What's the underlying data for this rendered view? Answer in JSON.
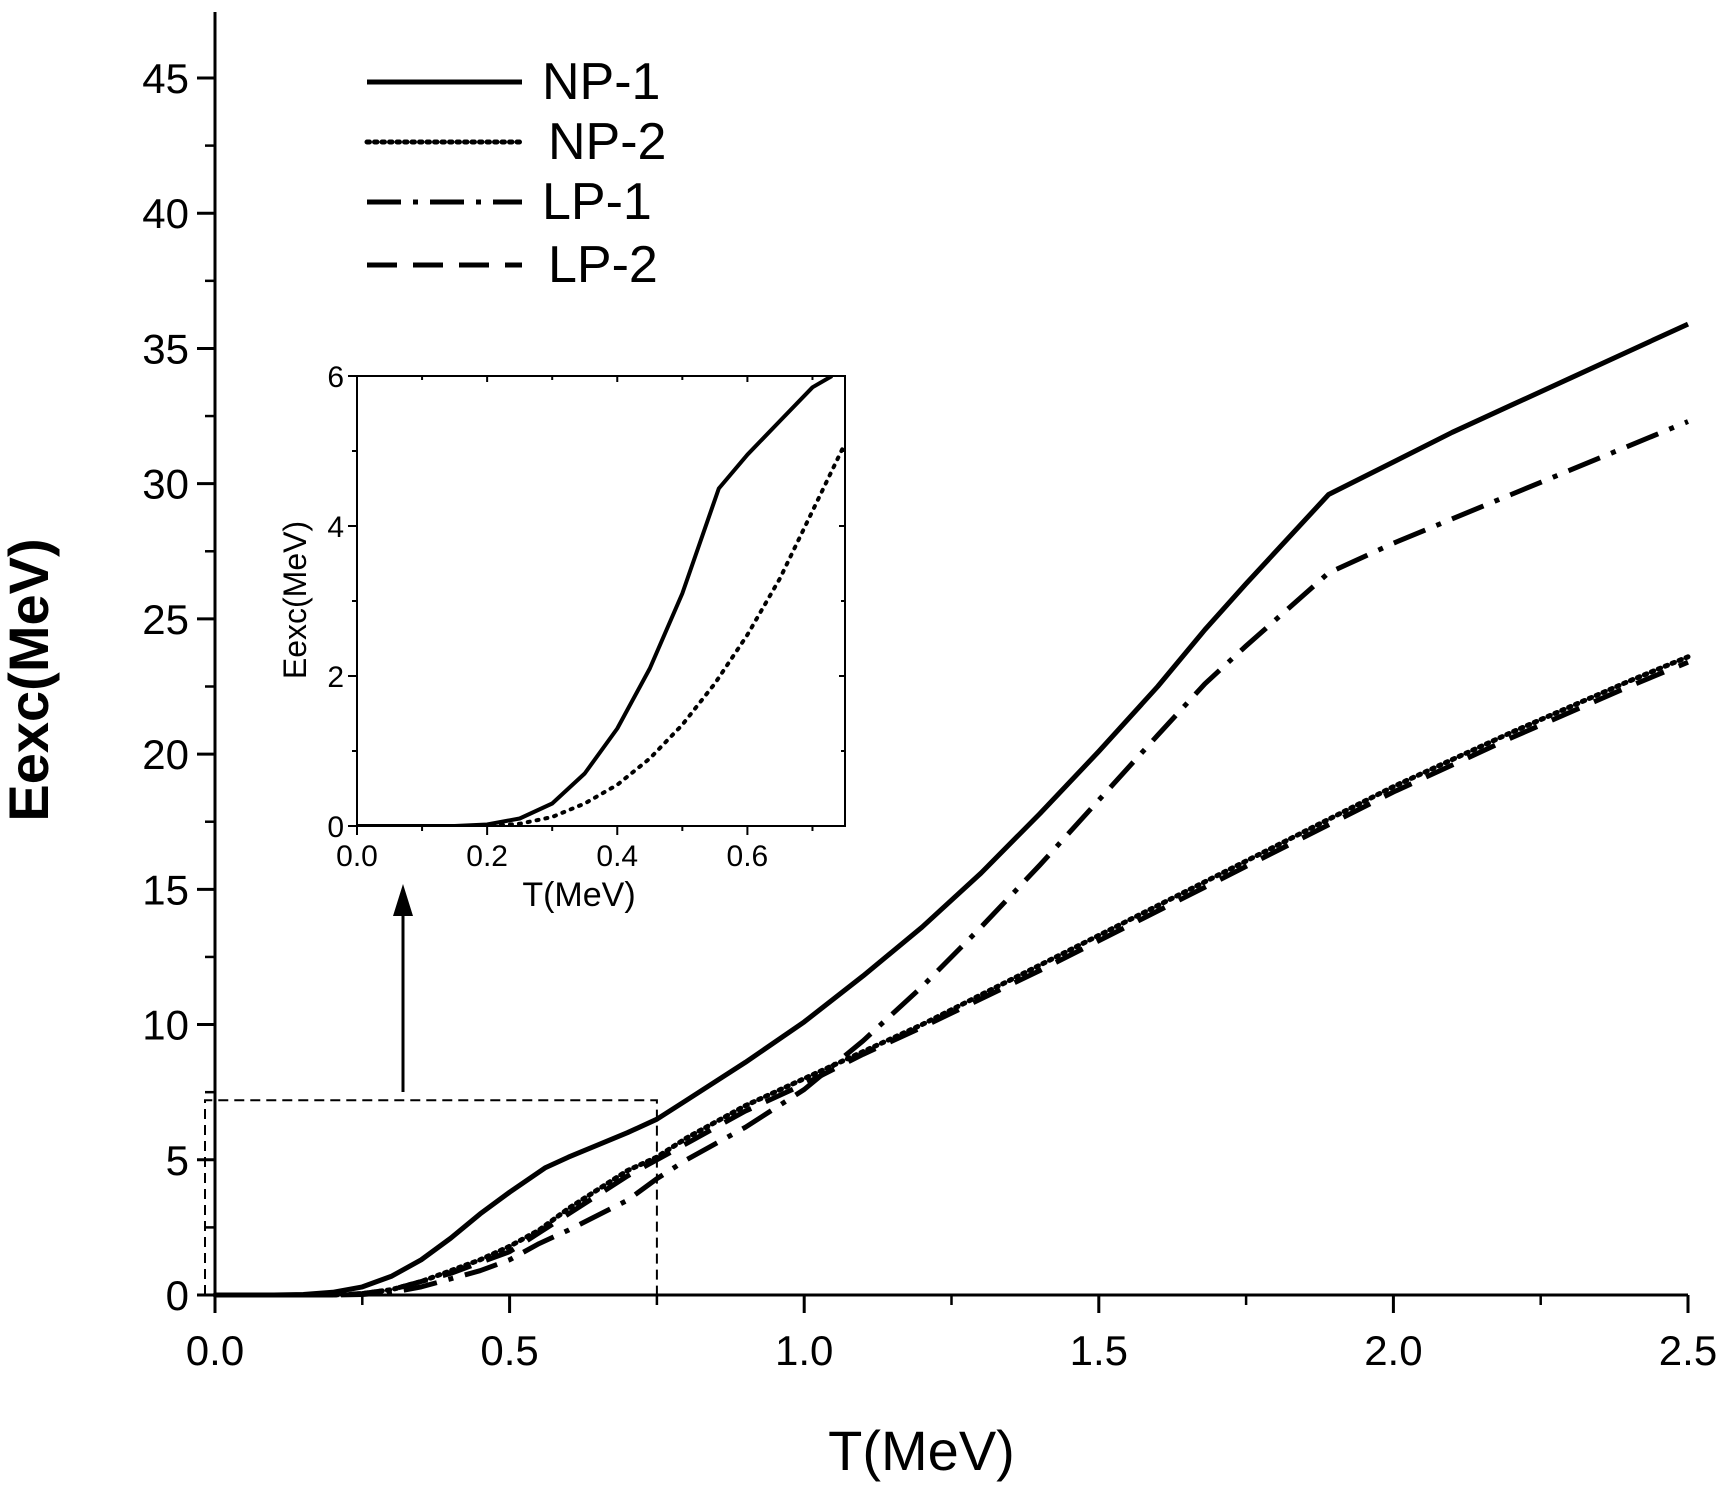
{
  "chart_data": [
    {
      "type": "line",
      "title": "",
      "xlabel": "T(MeV)",
      "ylabel": "Eexc(MeV)",
      "xlim": [
        0,
        2.5
      ],
      "ylim": [
        0,
        45
      ],
      "x_ticks": [
        0.0,
        0.5,
        1.0,
        1.5,
        2.0,
        2.5
      ],
      "x_tick_labels": [
        "0.0",
        "0.5",
        "1.0",
        "1.5",
        "2.0",
        "2.5"
      ],
      "y_ticks": [
        0,
        5,
        10,
        15,
        20,
        25,
        30,
        35,
        40,
        45
      ],
      "y_tick_labels": [
        "0",
        "5",
        "10",
        "15",
        "20",
        "25",
        "30",
        "35",
        "40",
        "45"
      ],
      "grid": false,
      "legend_position": "top-left",
      "series": [
        {
          "name": "NP-1",
          "style": "solid",
          "x": [
            0.0,
            0.1,
            0.15,
            0.2,
            0.25,
            0.3,
            0.35,
            0.4,
            0.45,
            0.5,
            0.56,
            0.6,
            0.7,
            0.75,
            0.8,
            0.9,
            1.0,
            1.1,
            1.2,
            1.3,
            1.4,
            1.5,
            1.6,
            1.68,
            1.75,
            1.89,
            2.0,
            2.1,
            2.2,
            2.3,
            2.4,
            2.5
          ],
          "y": [
            0.0,
            0.0,
            0.02,
            0.1,
            0.3,
            0.7,
            1.3,
            2.1,
            3.0,
            3.8,
            4.7,
            5.1,
            6.0,
            6.5,
            7.2,
            8.6,
            10.1,
            11.8,
            13.6,
            15.6,
            17.8,
            20.1,
            22.5,
            24.6,
            26.3,
            29.6,
            30.8,
            31.9,
            32.9,
            33.9,
            34.9,
            35.9
          ]
        },
        {
          "name": "NP-2",
          "style": "dotted",
          "x": [
            0.0,
            0.2,
            0.25,
            0.3,
            0.35,
            0.4,
            0.45,
            0.5,
            0.55,
            0.6,
            0.65,
            0.7,
            0.75,
            0.8,
            0.9,
            1.0,
            1.1,
            1.2,
            1.4,
            1.6,
            1.8,
            2.0,
            2.2,
            2.4,
            2.5
          ],
          "y": [
            0.0,
            0.0,
            0.05,
            0.2,
            0.5,
            0.9,
            1.3,
            1.8,
            2.4,
            3.2,
            3.9,
            4.6,
            5.1,
            5.8,
            7.0,
            8.0,
            9.0,
            10.0,
            12.2,
            14.4,
            16.6,
            18.8,
            20.8,
            22.7,
            23.6
          ]
        },
        {
          "name": "LP-1",
          "style": "dash-dot",
          "x": [
            0.0,
            0.2,
            0.25,
            0.3,
            0.35,
            0.4,
            0.45,
            0.5,
            0.55,
            0.6,
            0.7,
            0.75,
            0.8,
            0.9,
            1.0,
            1.1,
            1.2,
            1.3,
            1.4,
            1.5,
            1.6,
            1.68,
            1.75,
            1.89,
            2.0,
            2.1,
            2.2,
            2.3,
            2.4,
            2.5
          ],
          "y": [
            0.0,
            0.0,
            0.02,
            0.1,
            0.3,
            0.6,
            0.9,
            1.3,
            1.9,
            2.4,
            3.5,
            4.3,
            5.0,
            6.2,
            7.6,
            9.4,
            11.4,
            13.6,
            15.9,
            18.3,
            20.7,
            22.6,
            24.0,
            26.7,
            27.8,
            28.7,
            29.6,
            30.5,
            31.4,
            32.3
          ]
        },
        {
          "name": "LP-2",
          "style": "dashed",
          "x": [
            0.0,
            0.2,
            0.25,
            0.3,
            0.35,
            0.4,
            0.45,
            0.5,
            0.55,
            0.6,
            0.65,
            0.7,
            0.75,
            0.8,
            0.9,
            1.0,
            1.1,
            1.2,
            1.4,
            1.6,
            1.8,
            2.0,
            2.2,
            2.4,
            2.5
          ],
          "y": [
            0.0,
            0.0,
            0.05,
            0.2,
            0.5,
            0.8,
            1.2,
            1.6,
            2.3,
            3.0,
            3.7,
            4.4,
            5.0,
            5.6,
            6.8,
            7.8,
            8.9,
            9.9,
            12.0,
            14.2,
            16.4,
            18.6,
            20.6,
            22.5,
            23.4
          ]
        }
      ],
      "zoom_region": {
        "x": [
          0,
          0.75
        ],
        "y": [
          0,
          7.2
        ]
      }
    },
    {
      "type": "line",
      "title": "",
      "xlabel": "T(MeV)",
      "ylabel": "Eexc(MeV)",
      "xlim": [
        0,
        0.75
      ],
      "ylim": [
        0,
        6
      ],
      "x_ticks": [
        0.0,
        0.2,
        0.4,
        0.6
      ],
      "x_tick_labels": [
        "0.0",
        "0.2",
        "0.4",
        "0.6"
      ],
      "y_ticks": [
        0,
        2,
        4,
        6
      ],
      "y_tick_labels": [
        "0",
        "2",
        "4",
        "6"
      ],
      "grid": false,
      "series": [
        {
          "name": "NP-1",
          "style": "solid",
          "x": [
            0.0,
            0.1,
            0.15,
            0.2,
            0.25,
            0.3,
            0.35,
            0.4,
            0.45,
            0.5,
            0.556,
            0.6,
            0.65,
            0.7,
            0.73
          ],
          "y": [
            0.0,
            0.0,
            0.0,
            0.02,
            0.1,
            0.3,
            0.7,
            1.3,
            2.1,
            3.1,
            4.5,
            4.95,
            5.4,
            5.85,
            6.0
          ]
        },
        {
          "name": "NP-2",
          "style": "dotted",
          "x": [
            0.0,
            0.2,
            0.25,
            0.3,
            0.35,
            0.4,
            0.45,
            0.5,
            0.55,
            0.6,
            0.65,
            0.7,
            0.75
          ],
          "y": [
            0.0,
            0.0,
            0.03,
            0.12,
            0.3,
            0.55,
            0.9,
            1.35,
            1.9,
            2.55,
            3.3,
            4.2,
            5.1
          ]
        }
      ]
    }
  ]
}
